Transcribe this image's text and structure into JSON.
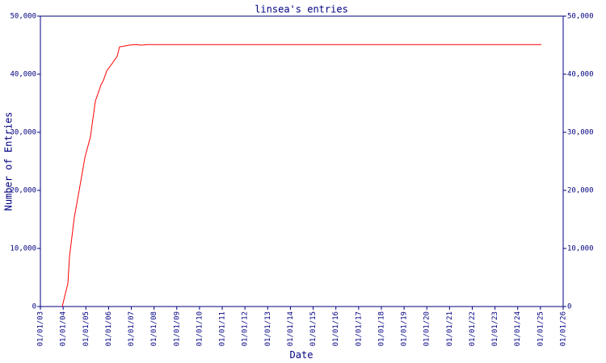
{
  "chart_data": {
    "type": "line",
    "title": "linsea's entries",
    "x_label": "Date",
    "y_label": "Number of Entries",
    "x": [
      2003.96,
      2004.21,
      2004.28,
      2004.49,
      2004.71,
      2004.96,
      2005.2,
      2005.42,
      2005.67,
      2005.77,
      2005.92,
      2006.13,
      2006.38,
      2006.48,
      2006.91,
      2007.19,
      2007.44,
      2007.69,
      2025.04
    ],
    "series": [
      {
        "name": "entries",
        "color": "#ff0000",
        "values": [
          0,
          4000,
          8600,
          15300,
          20100,
          25700,
          29200,
          35400,
          38200,
          38900,
          40600,
          41700,
          43100,
          44700,
          45000,
          45100,
          45000,
          45100,
          45100
        ]
      }
    ],
    "xlim": [
      2003,
      2026
    ],
    "xticks": [
      {
        "value": 2003,
        "label": "01/01/03"
      },
      {
        "value": 2004,
        "label": "01/01/04"
      },
      {
        "value": 2005,
        "label": "01/01/05"
      },
      {
        "value": 2006,
        "label": "01/01/06"
      },
      {
        "value": 2007,
        "label": "01/01/07"
      },
      {
        "value": 2008,
        "label": "01/01/08"
      },
      {
        "value": 2009,
        "label": "01/01/09"
      },
      {
        "value": 2010,
        "label": "01/01/10"
      },
      {
        "value": 2011,
        "label": "01/01/11"
      },
      {
        "value": 2012,
        "label": "01/01/12"
      },
      {
        "value": 2013,
        "label": "01/01/13"
      },
      {
        "value": 2014,
        "label": "01/01/14"
      },
      {
        "value": 2015,
        "label": "01/01/15"
      },
      {
        "value": 2016,
        "label": "01/01/16"
      },
      {
        "value": 2017,
        "label": "01/01/17"
      },
      {
        "value": 2018,
        "label": "01/01/18"
      },
      {
        "value": 2019,
        "label": "01/01/19"
      },
      {
        "value": 2020,
        "label": "01/01/20"
      },
      {
        "value": 2021,
        "label": "01/01/21"
      },
      {
        "value": 2022,
        "label": "01/01/22"
      },
      {
        "value": 2023,
        "label": "01/01/23"
      },
      {
        "value": 2024,
        "label": "01/01/24"
      },
      {
        "value": 2025,
        "label": "01/01/25"
      },
      {
        "value": 2026,
        "label": "01/01/26"
      }
    ],
    "ylim": [
      0,
      50000
    ],
    "yticks": [
      0,
      {
        "value": 10000,
        "label": "10,000"
      },
      {
        "value": 20000,
        "label": "20,000"
      },
      {
        "value": 30000,
        "label": "30,000"
      },
      {
        "value": 40000,
        "label": "40,000"
      },
      {
        "value": 50000,
        "label": "50,000"
      }
    ],
    "axis_color": "#000080"
  }
}
